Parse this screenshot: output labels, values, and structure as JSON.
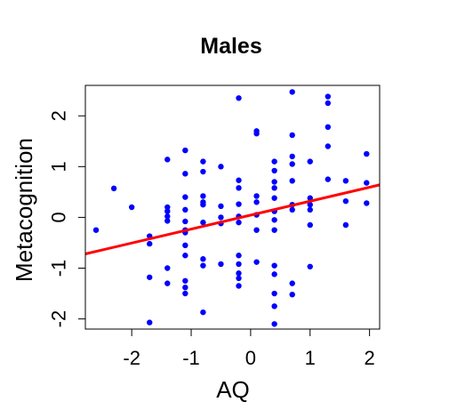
{
  "chart_data": {
    "type": "scatter",
    "title": "Males",
    "xlabel": "AQ",
    "ylabel": "Metacognition",
    "xlim": [
      -2.78,
      2.17
    ],
    "ylim": [
      -2.2,
      2.6
    ],
    "x_ticks": [
      -2,
      -1,
      0,
      1,
      2
    ],
    "x_tick_labels": [
      "-2",
      "-1",
      "0",
      "1",
      "2"
    ],
    "y_ticks": [
      -2,
      -1,
      0,
      1,
      2
    ],
    "y_tick_labels": [
      "-2",
      "-1",
      "0",
      "1",
      "2"
    ],
    "grid": false,
    "point_color": "#0000ff",
    "line_color": "#ff0000",
    "trend_line": {
      "x": [
        -2.78,
        2.17
      ],
      "y": [
        -0.72,
        0.64
      ]
    },
    "points": [
      {
        "x": -2.6,
        "y": -0.25
      },
      {
        "x": -2.3,
        "y": 0.57
      },
      {
        "x": -2.0,
        "y": 0.2
      },
      {
        "x": -1.7,
        "y": -0.37
      },
      {
        "x": -1.7,
        "y": -0.52
      },
      {
        "x": -1.7,
        "y": -1.18
      },
      {
        "x": -1.7,
        "y": -2.07
      },
      {
        "x": -1.4,
        "y": 1.14
      },
      {
        "x": -1.4,
        "y": 0.2
      },
      {
        "x": -1.4,
        "y": 0.12
      },
      {
        "x": -1.4,
        "y": 0.02
      },
      {
        "x": -1.4,
        "y": -0.07
      },
      {
        "x": -1.4,
        "y": -1.0
      },
      {
        "x": -1.4,
        "y": -1.3
      },
      {
        "x": -1.1,
        "y": 1.32
      },
      {
        "x": -1.1,
        "y": 0.86
      },
      {
        "x": -1.1,
        "y": 0.4
      },
      {
        "x": -1.1,
        "y": 0.15
      },
      {
        "x": -1.1,
        "y": -0.08
      },
      {
        "x": -1.1,
        "y": -0.25
      },
      {
        "x": -1.1,
        "y": -0.3
      },
      {
        "x": -1.1,
        "y": -0.55
      },
      {
        "x": -1.1,
        "y": -0.75
      },
      {
        "x": -1.1,
        "y": -1.25
      },
      {
        "x": -1.1,
        "y": -1.38
      },
      {
        "x": -1.1,
        "y": -1.5
      },
      {
        "x": -0.8,
        "y": 1.1
      },
      {
        "x": -0.8,
        "y": 0.9
      },
      {
        "x": -0.8,
        "y": 0.42
      },
      {
        "x": -0.8,
        "y": 0.3
      },
      {
        "x": -0.8,
        "y": 0.25
      },
      {
        "x": -0.8,
        "y": -0.1
      },
      {
        "x": -0.8,
        "y": -0.82
      },
      {
        "x": -0.8,
        "y": -0.95
      },
      {
        "x": -0.8,
        "y": -1.87
      },
      {
        "x": -0.5,
        "y": 1.0
      },
      {
        "x": -0.5,
        "y": 0.22
      },
      {
        "x": -0.5,
        "y": 0.0
      },
      {
        "x": -0.5,
        "y": -0.12
      },
      {
        "x": -0.5,
        "y": -0.92
      },
      {
        "x": -0.2,
        "y": 2.35
      },
      {
        "x": -0.2,
        "y": 0.73
      },
      {
        "x": -0.2,
        "y": 0.58
      },
      {
        "x": -0.2,
        "y": 0.26
      },
      {
        "x": -0.2,
        "y": 0.02
      },
      {
        "x": -0.2,
        "y": -0.1
      },
      {
        "x": -0.2,
        "y": -0.75
      },
      {
        "x": -0.2,
        "y": -0.92
      },
      {
        "x": -0.2,
        "y": -1.1
      },
      {
        "x": -0.2,
        "y": -1.2
      },
      {
        "x": -0.2,
        "y": -1.35
      },
      {
        "x": 0.1,
        "y": 1.7
      },
      {
        "x": 0.1,
        "y": 1.65
      },
      {
        "x": 0.1,
        "y": 0.42
      },
      {
        "x": 0.1,
        "y": 0.3
      },
      {
        "x": 0.1,
        "y": 0.05
      },
      {
        "x": 0.1,
        "y": -0.25
      },
      {
        "x": 0.1,
        "y": -0.88
      },
      {
        "x": 0.4,
        "y": 1.1
      },
      {
        "x": 0.4,
        "y": 0.92
      },
      {
        "x": 0.4,
        "y": 0.7
      },
      {
        "x": 0.4,
        "y": 0.58
      },
      {
        "x": 0.4,
        "y": 0.38
      },
      {
        "x": 0.4,
        "y": 0.12
      },
      {
        "x": 0.4,
        "y": -0.05
      },
      {
        "x": 0.4,
        "y": -0.25
      },
      {
        "x": 0.4,
        "y": -0.95
      },
      {
        "x": 0.4,
        "y": -1.12
      },
      {
        "x": 0.4,
        "y": -1.5
      },
      {
        "x": 0.4,
        "y": -1.75
      },
      {
        "x": 0.4,
        "y": -2.1
      },
      {
        "x": 0.7,
        "y": 2.47
      },
      {
        "x": 0.7,
        "y": 1.62
      },
      {
        "x": 0.7,
        "y": 1.2
      },
      {
        "x": 0.7,
        "y": 1.05
      },
      {
        "x": 0.7,
        "y": 0.72
      },
      {
        "x": 0.7,
        "y": 0.25
      },
      {
        "x": 0.7,
        "y": 0.15
      },
      {
        "x": 0.7,
        "y": -1.3
      },
      {
        "x": 0.7,
        "y": -1.52
      },
      {
        "x": 1.0,
        "y": 1.1
      },
      {
        "x": 1.0,
        "y": 0.38
      },
      {
        "x": 1.0,
        "y": 0.25
      },
      {
        "x": 1.0,
        "y": 0.15
      },
      {
        "x": 1.0,
        "y": -0.15
      },
      {
        "x": 1.0,
        "y": -0.97
      },
      {
        "x": 1.3,
        "y": 2.38
      },
      {
        "x": 1.3,
        "y": 2.25
      },
      {
        "x": 1.3,
        "y": 1.78
      },
      {
        "x": 1.3,
        "y": 1.4
      },
      {
        "x": 1.3,
        "y": 0.75
      },
      {
        "x": 1.6,
        "y": 0.72
      },
      {
        "x": 1.6,
        "y": 0.32
      },
      {
        "x": 1.6,
        "y": -0.15
      },
      {
        "x": 1.95,
        "y": 1.25
      },
      {
        "x": 1.95,
        "y": 0.68
      },
      {
        "x": 1.95,
        "y": 0.28
      }
    ]
  }
}
